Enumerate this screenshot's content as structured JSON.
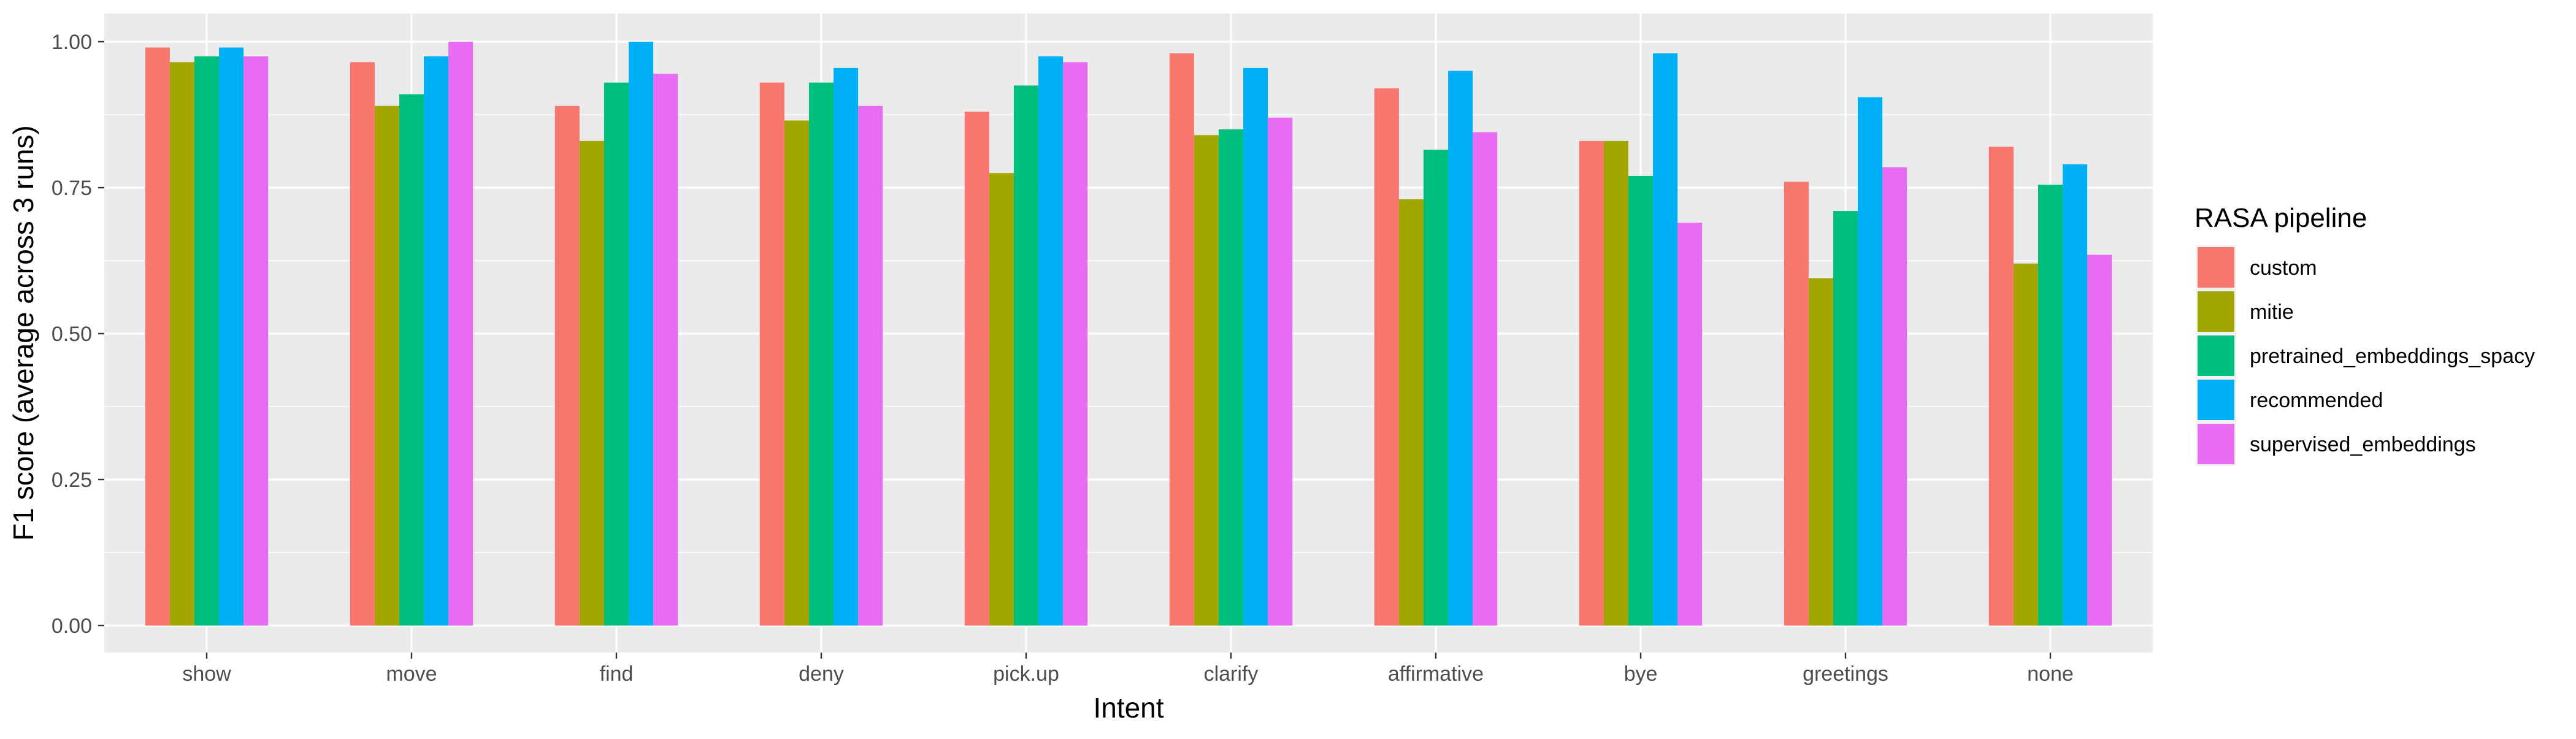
{
  "chart_data": {
    "type": "bar",
    "xlabel": "Intent",
    "ylabel": "F1 score (average across 3 runs)",
    "ylim": [
      0,
      1.04
    ],
    "yticks": [
      "0.00",
      "0.25",
      "0.50",
      "0.75",
      "1.00"
    ],
    "grid": true,
    "legend_position": "right",
    "legend_title": "RASA pipeline",
    "categories": [
      "show",
      "move",
      "find",
      "deny",
      "pick.up",
      "clarify",
      "affirmative",
      "bye",
      "greetings",
      "none"
    ],
    "series": [
      {
        "name": "custom",
        "color": "#F8766D",
        "values": [
          0.99,
          0.965,
          0.89,
          0.93,
          0.88,
          0.98,
          0.92,
          0.83,
          0.76,
          0.82
        ]
      },
      {
        "name": "mitie",
        "color": "#A3A500",
        "values": [
          0.965,
          0.89,
          0.83,
          0.865,
          0.775,
          0.84,
          0.73,
          0.83,
          0.595,
          0.62
        ]
      },
      {
        "name": "pretrained_embeddings_spacy",
        "color": "#00BF7D",
        "values": [
          0.975,
          0.91,
          0.93,
          0.93,
          0.925,
          0.85,
          0.815,
          0.77,
          0.71,
          0.755
        ]
      },
      {
        "name": "recommended",
        "color": "#00B0F6",
        "values": [
          0.99,
          0.975,
          1.0,
          0.955,
          0.975,
          0.955,
          0.95,
          0.98,
          0.905,
          0.79
        ]
      },
      {
        "name": "supervised_embeddings",
        "color": "#E76BF3",
        "values": [
          0.975,
          1.0,
          0.945,
          0.89,
          0.965,
          0.87,
          0.845,
          0.69,
          0.785,
          0.635
        ]
      }
    ]
  }
}
